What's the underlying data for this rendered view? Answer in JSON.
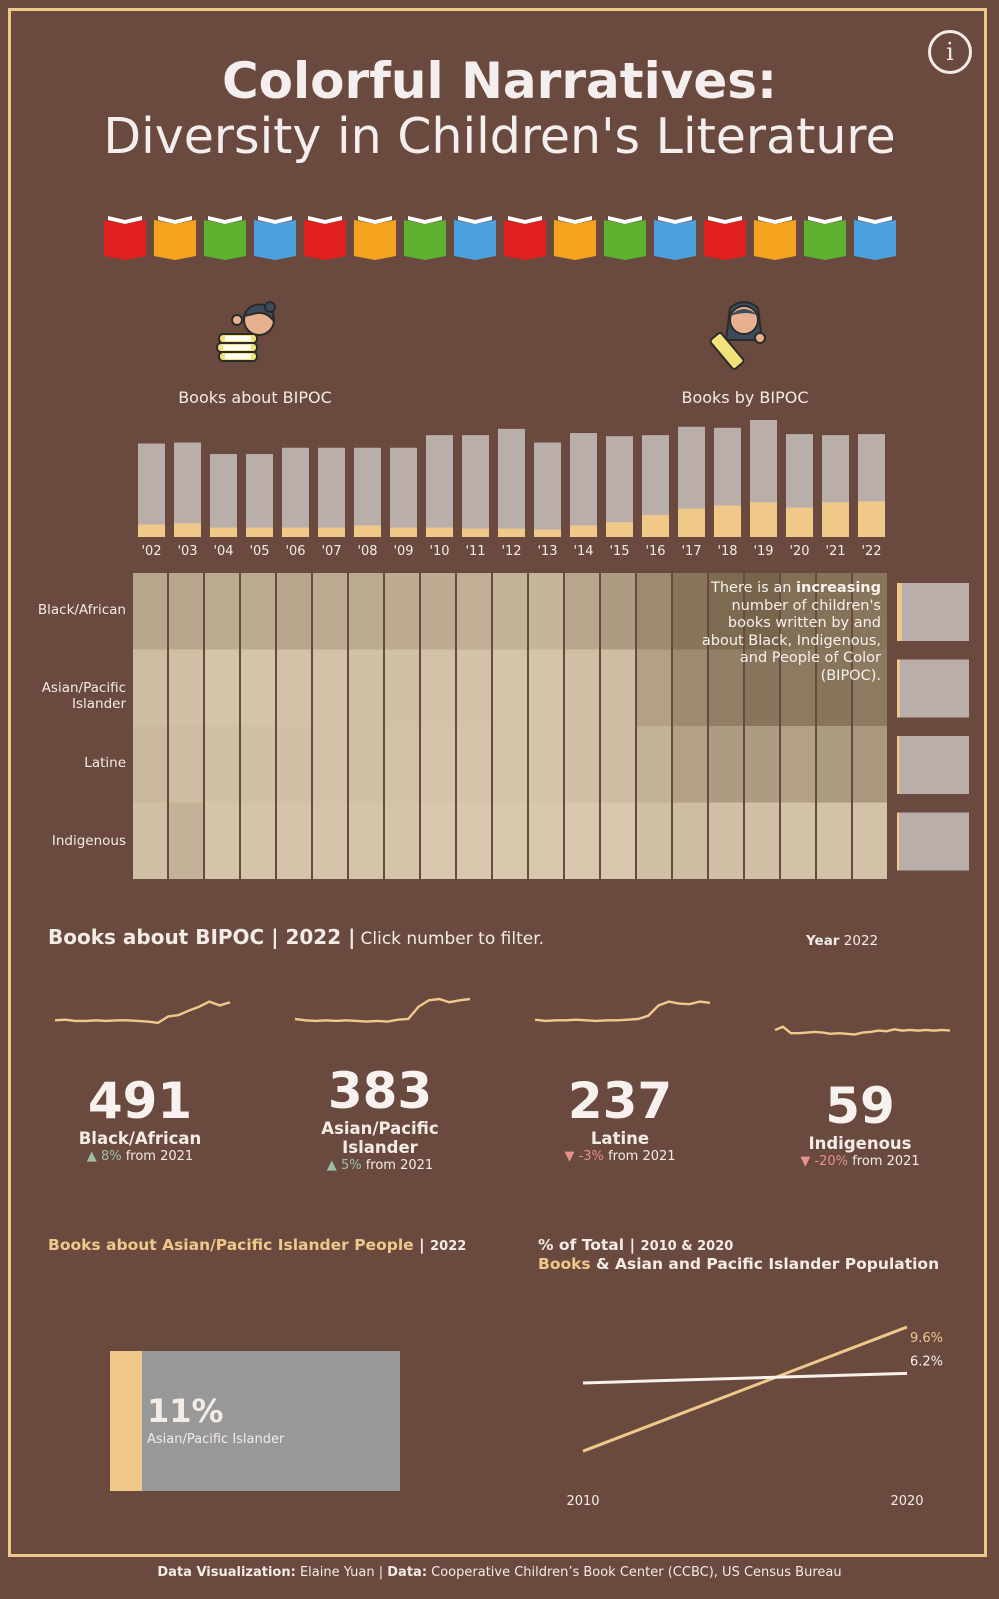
{
  "title_line1": "Colorful Narratives:",
  "title_line2": "Diversity in Children's Literature",
  "info_icon": "i",
  "book_icon_colors": [
    "#e0201f",
    "#f5a21f",
    "#5db12e",
    "#4da0e0"
  ],
  "legend": {
    "about_label": "Books about BIPOC",
    "by_label": "Books by BIPOC",
    "about_color": "#f0c98a",
    "by_color": "#a9c1d8"
  },
  "annotation": {
    "pre": "There is an ",
    "bold": "increasing",
    "post": " number of children's books written by and about Black, Indigenous, and People of Color (BIPOC)."
  },
  "chart_data": [
    {
      "type": "bar",
      "title": "",
      "categories": [
        "'02",
        "'03",
        "'04",
        "'05",
        "'06",
        "'07",
        "'08",
        "'09",
        "'10",
        "'11",
        "'12",
        "'13",
        "'14",
        "'15",
        "'16",
        "'17",
        "'18",
        "'19",
        "'20",
        "'21",
        "'22"
      ],
      "series": [
        {
          "name": "Books about BIPOC",
          "values": [
            12,
            13,
            9,
            9,
            9,
            9,
            11,
            9,
            9,
            8,
            8,
            7,
            11,
            14,
            21,
            27,
            30,
            33,
            28,
            33,
            34
          ]
        },
        {
          "name": "",
          "values": [
            89,
            90,
            79,
            79,
            85,
            85,
            85,
            85,
            97,
            97,
            103,
            90,
            99,
            96,
            97,
            105,
            104,
            115,
            98,
            97,
            98
          ]
        }
      ]
    },
    {
      "type": "heatmap",
      "rows": [
        "Black/African",
        "Asian/Pacific Islander",
        "Latine",
        "Indigenous"
      ],
      "columns": [
        "'02",
        "'03",
        "'04",
        "'05",
        "'06",
        "'07",
        "'08",
        "'09",
        "'10",
        "'11",
        "'12",
        "'13",
        "'14",
        "'15",
        "'16",
        "'17",
        "'18",
        "'19",
        "'20",
        "'21",
        "'22"
      ],
      "values": [
        [
          0.35,
          0.35,
          0.32,
          0.32,
          0.35,
          0.32,
          0.32,
          0.3,
          0.3,
          0.27,
          0.25,
          0.22,
          0.35,
          0.45,
          0.6,
          0.8,
          0.9,
          0.95,
          0.85,
          0.82,
          0.8
        ],
        [
          0.15,
          0.12,
          0.08,
          0.08,
          0.1,
          0.1,
          0.12,
          0.12,
          0.1,
          0.1,
          0.08,
          0.08,
          0.12,
          0.15,
          0.4,
          0.6,
          0.7,
          0.8,
          0.75,
          0.8,
          0.75
        ],
        [
          0.18,
          0.15,
          0.12,
          0.12,
          0.12,
          0.1,
          0.12,
          0.1,
          0.08,
          0.08,
          0.08,
          0.08,
          0.12,
          0.15,
          0.25,
          0.4,
          0.45,
          0.45,
          0.4,
          0.45,
          0.48
        ],
        [
          0.12,
          0.25,
          0.08,
          0.08,
          0.08,
          0.08,
          0.08,
          0.08,
          0.05,
          0.05,
          0.05,
          0.05,
          0.05,
          0.05,
          0.12,
          0.15,
          0.12,
          0.12,
          0.1,
          0.1,
          0.1
        ]
      ],
      "side_bars": [
        0.07,
        0.04,
        0.03,
        0.01
      ]
    },
    {
      "type": "line",
      "title": "% of Total",
      "x": [
        2010,
        2020
      ],
      "series": [
        {
          "name": "Books",
          "values": [
            0.5,
            9.6
          ],
          "labels": [
            "",
            "9.6%"
          ]
        },
        {
          "name": "Asian and Pacific Islander Population",
          "values": [
            5.5,
            6.2
          ],
          "labels": [
            "",
            "6.2%"
          ]
        }
      ],
      "xticks": [
        "2010",
        "2020"
      ]
    }
  ],
  "section1": {
    "title": "Books about BIPOC | 2022 |",
    "hint": "Click number to filter.",
    "year_label": "Year",
    "year_value": "2022"
  },
  "kpis": [
    {
      "value": "491",
      "name": "Black/African",
      "arrow": "▲",
      "change": "8%",
      "suffix": "from 2021",
      "dir": "up",
      "spark": [
        29,
        30,
        28,
        28,
        29,
        28,
        29,
        29,
        28,
        27,
        25,
        35,
        37,
        44,
        50,
        58,
        52,
        57
      ]
    },
    {
      "value": "383",
      "name": "Asian/Pacific Islander",
      "arrow": "▲",
      "change": "5%",
      "suffix": "from 2021",
      "dir": "up",
      "spark": [
        31,
        29,
        28,
        29,
        28,
        29,
        28,
        27,
        28,
        27,
        30,
        31,
        50,
        60,
        62,
        57,
        60,
        62
      ]
    },
    {
      "value": "237",
      "name": "Latine",
      "arrow": "▼",
      "change": "-3%",
      "suffix": "from 2021",
      "dir": "down",
      "spark": [
        30,
        28,
        29,
        29,
        30,
        29,
        28,
        29,
        29,
        30,
        31,
        36,
        52,
        58,
        55,
        54,
        58,
        56
      ]
    },
    {
      "value": "59",
      "name": "Indigenous",
      "arrow": "▼",
      "change": "-20%",
      "suffix": "from 2021",
      "dir": "down",
      "spark": [
        14,
        19,
        9,
        9,
        10,
        11,
        10,
        8,
        9,
        8,
        7,
        10,
        11,
        13,
        12,
        15,
        13,
        14,
        13,
        14,
        13,
        14,
        13
      ]
    }
  ],
  "section2": {
    "title": "Books about Asian/Pacific Islander People",
    "sep": " | ",
    "year": "2022",
    "pct": "11%",
    "pct_label": "Asian/Pacific Islander",
    "fill": 0.11
  },
  "section3": {
    "title": "% of Total",
    "sep": " | ",
    "years": "2010 & 2020",
    "books": "Books",
    "rest": " & Asian and Pacific Islander Population"
  },
  "footer": {
    "dv_label": "Data Visualization:",
    "dv_name": " Elaine Yuan | ",
    "data_label": "Data:",
    "data_src": " Cooperative Children’s Book Center (CCBC), US Census Bureau"
  }
}
